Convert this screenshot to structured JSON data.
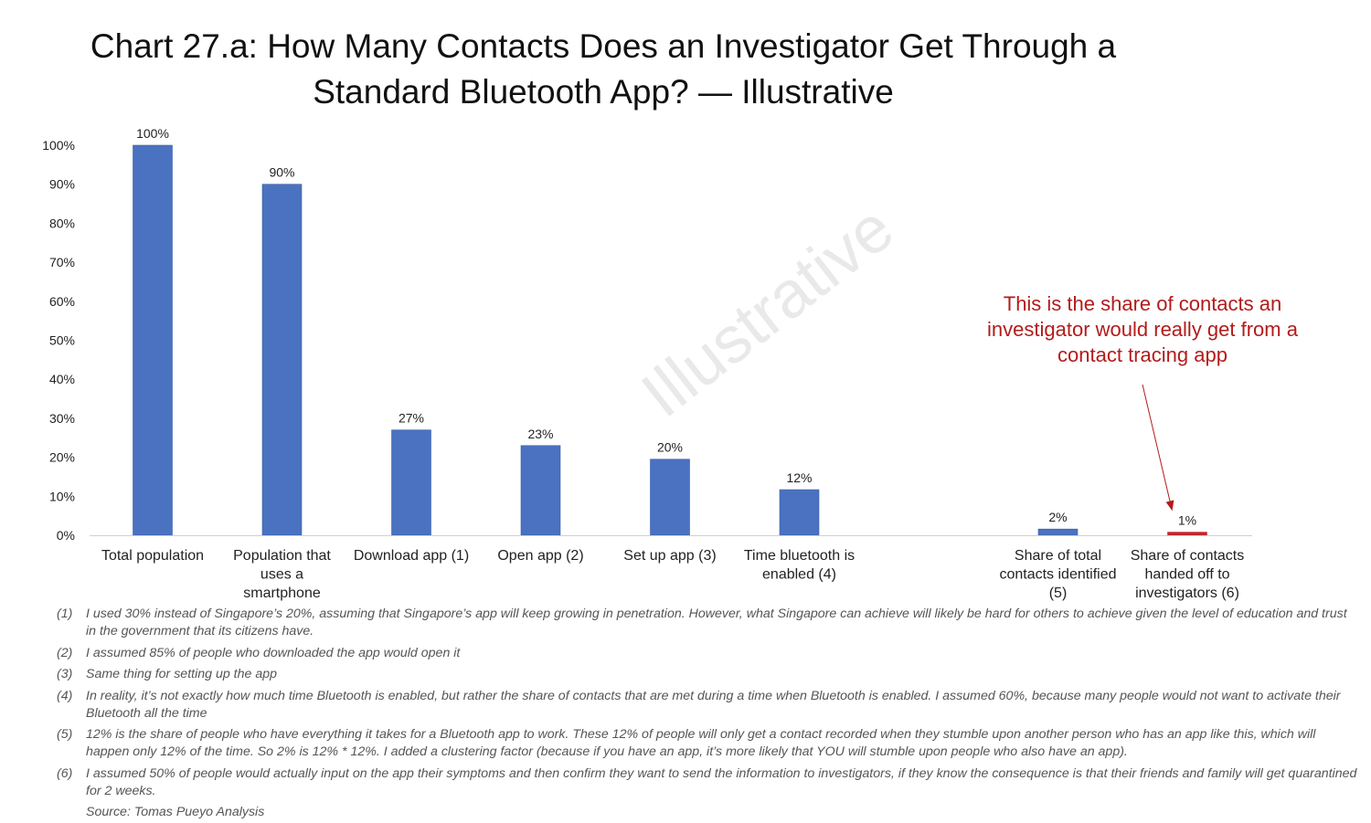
{
  "title_lines": [
    "Chart 27.a: How Many Contacts Does an Investigator Get Through a",
    "Standard Bluetooth App? — Illustrative"
  ],
  "watermark": "Illustrative",
  "annotation": {
    "lines": [
      "This is the share of contacts an",
      "investigator would really get from a",
      "contact tracing app"
    ],
    "color": "#b31b1b"
  },
  "colors": {
    "bar": "#4a72c0",
    "bar_highlight": "#c0272d",
    "axis": "#d0d0d0"
  },
  "chart_data": {
    "type": "bar",
    "title": "Chart 27.a: How Many Contacts Does an Investigator Get Through a Standard Bluetooth App? — Illustrative",
    "xlabel": "",
    "ylabel": "",
    "ylim": [
      0,
      100
    ],
    "yticks": [
      "0%",
      "10%",
      "20%",
      "30%",
      "40%",
      "50%",
      "60%",
      "70%",
      "80%",
      "90%",
      "100%"
    ],
    "grid": false,
    "categories": [
      {
        "lines": [
          "Total population"
        ],
        "value": 100,
        "label": "100%",
        "slot": 0,
        "highlight": false
      },
      {
        "lines": [
          "Population that",
          "uses a",
          "smartphone"
        ],
        "value": 90,
        "label": "90%",
        "slot": 1,
        "highlight": false
      },
      {
        "lines": [
          "Download app (1)"
        ],
        "value": 27,
        "label": "27%",
        "slot": 2,
        "highlight": false
      },
      {
        "lines": [
          "Open app (2)"
        ],
        "value": 23,
        "label": "23%",
        "slot": 3,
        "highlight": false
      },
      {
        "lines": [
          "Set up app (3)"
        ],
        "value": 19.5,
        "label": "20%",
        "slot": 4,
        "highlight": false
      },
      {
        "lines": [
          "Time bluetooth is",
          "enabled (4)"
        ],
        "value": 11.7,
        "label": "12%",
        "slot": 5,
        "highlight": false
      },
      {
        "lines": [
          "Share of total",
          "contacts identified",
          "(5)"
        ],
        "value": 1.6,
        "label": "2%",
        "slot": 7,
        "highlight": false
      },
      {
        "lines": [
          "Share of contacts",
          "handed off to",
          "investigators (6)"
        ],
        "value": 0.8,
        "label": "1%",
        "slot": 8,
        "highlight": true
      }
    ]
  },
  "footnotes": [
    {
      "num": "(1)",
      "text": "I used 30% instead of Singapore’s 20%, assuming that Singapore’s app will keep growing in penetration. However, what Singapore can achieve will likely be hard for others to achieve given the level of education and trust in the government that its citizens have."
    },
    {
      "num": "(2)",
      "text": "I assumed 85% of people who downloaded the app would open it"
    },
    {
      "num": "(3)",
      "text": "Same thing for setting up the app"
    },
    {
      "num": "(4)",
      "text": "In reality, it’s not exactly how much time Bluetooth is enabled, but rather the share of contacts that are met during a time when Bluetooth is enabled. I assumed 60%, because many people would not want to activate their Bluetooth all the time"
    },
    {
      "num": "(5)",
      "text": "12% is the share of people who have everything it takes for a Bluetooth app to work. These 12% of people will only get a contact recorded when they stumble upon another person who has an app like this, which will happen only 12% of the time. So 2% is 12% * 12%. I added a clustering factor (because if you have an app, it’s more likely that YOU will stumble upon people who also have an app)."
    },
    {
      "num": "(6)",
      "text": "I assumed 50% of people would actually input on the app their symptoms and then confirm they want to send the information to investigators, if they know the consequence is that their friends and family will get quarantined for 2 weeks."
    }
  ],
  "source": "Source: Tomas Pueyo Analysis"
}
